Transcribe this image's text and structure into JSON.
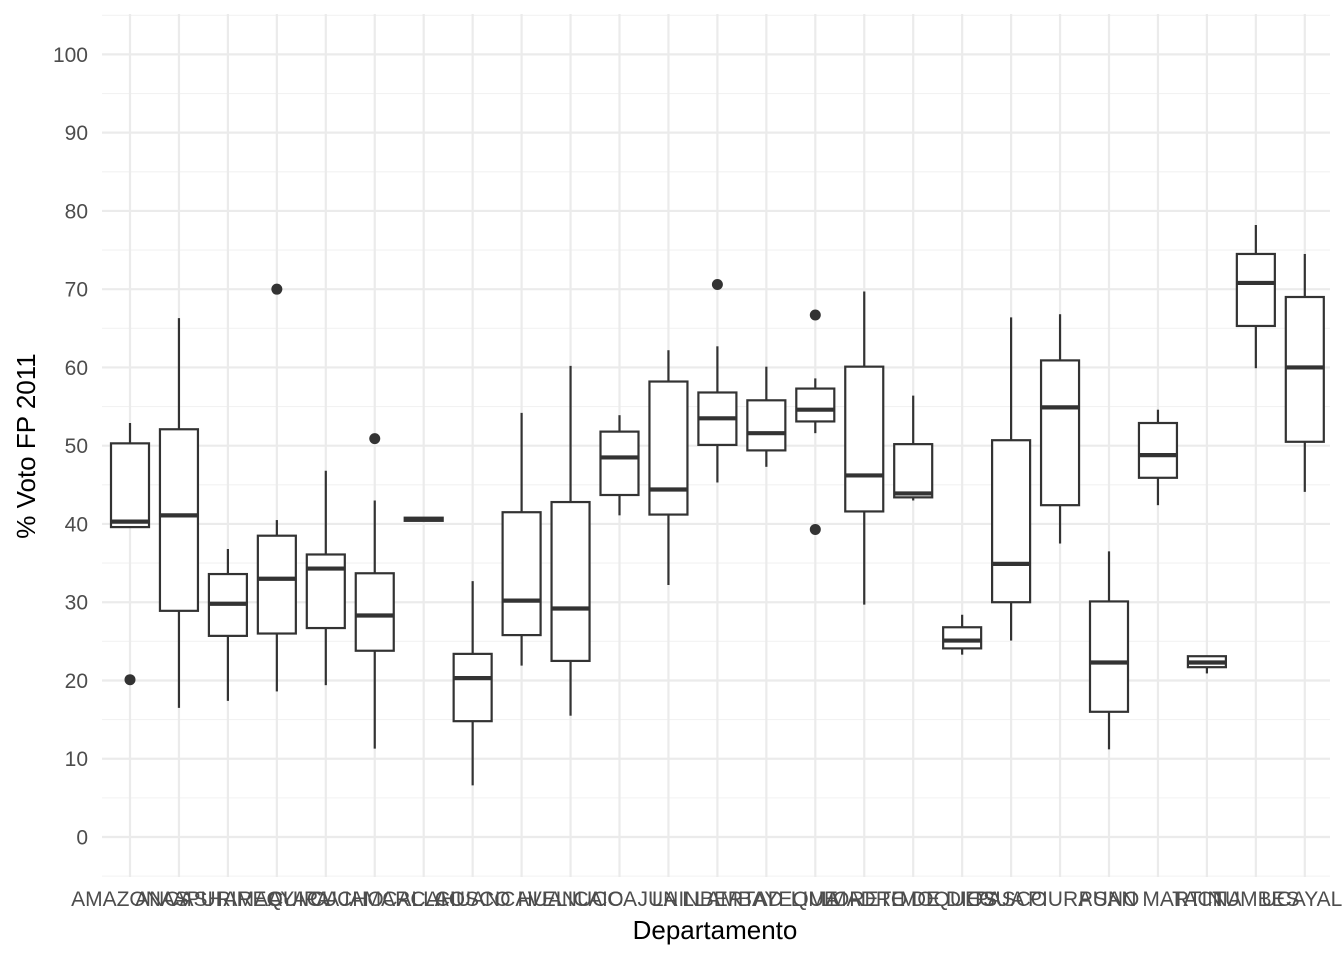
{
  "chart_data": {
    "type": "boxplot",
    "title": "",
    "xlabel": "Departamento",
    "ylabel": "% Voto FP 2011",
    "ylim": [
      -5,
      105
    ],
    "yticks": [
      0,
      10,
      20,
      30,
      40,
      50,
      60,
      70,
      80,
      90,
      100
    ],
    "grid": true,
    "legend": "none",
    "colors": {
      "grid_major": "#ebebeb",
      "grid_minor": "#f2f2f2",
      "box": "#333333",
      "tick_text": "#4d4d4d"
    },
    "categories": [
      "AMAZONAS",
      "ANCASH",
      "APURIMAC",
      "AREQUIPA",
      "AYACUCHO",
      "CAJAMARCA",
      "CALLAO",
      "CUSCO",
      "HUANCAVELICA",
      "HUANUCO",
      "ICA",
      "JUNIN",
      "LA LIBERTAD",
      "LAMBAYEQUE",
      "LIMA",
      "LORETO",
      "MADRE DE DIOS",
      "MOQUEGUA",
      "PASCO",
      "PIURA",
      "PUNO",
      "SAN MARTIN",
      "TACNA",
      "TUMBES",
      "UCAYALI"
    ],
    "boxes": [
      {
        "min": 39.6,
        "q1": 39.6,
        "median": 40.3,
        "q3": 50.3,
        "max": 52.9,
        "outliers": [
          20.1
        ]
      },
      {
        "min": 16.5,
        "q1": 28.9,
        "median": 41.1,
        "q3": 52.1,
        "max": 66.3,
        "outliers": []
      },
      {
        "min": 17.4,
        "q1": 25.7,
        "median": 29.8,
        "q3": 33.6,
        "max": 36.8,
        "outliers": []
      },
      {
        "min": 18.6,
        "q1": 26.0,
        "median": 33.0,
        "q3": 38.5,
        "max": 40.5,
        "outliers": [
          70.0
        ]
      },
      {
        "min": 19.4,
        "q1": 26.7,
        "median": 34.3,
        "q3": 36.1,
        "max": 46.8,
        "outliers": []
      },
      {
        "min": 11.3,
        "q1": 23.8,
        "median": 28.3,
        "q3": 33.7,
        "max": 43.0,
        "outliers": [
          50.9
        ]
      },
      {
        "min": 40.4,
        "q1": 40.4,
        "median": 40.6,
        "q3": 40.8,
        "max": 40.8,
        "outliers": []
      },
      {
        "min": 6.6,
        "q1": 14.8,
        "median": 20.3,
        "q3": 23.4,
        "max": 32.7,
        "outliers": []
      },
      {
        "min": 21.9,
        "q1": 25.8,
        "median": 30.2,
        "q3": 41.5,
        "max": 54.2,
        "outliers": []
      },
      {
        "min": 15.5,
        "q1": 22.5,
        "median": 29.2,
        "q3": 42.8,
        "max": 60.2,
        "outliers": []
      },
      {
        "min": 41.1,
        "q1": 43.7,
        "median": 48.5,
        "q3": 51.8,
        "max": 53.9,
        "outliers": []
      },
      {
        "min": 32.2,
        "q1": 41.2,
        "median": 44.4,
        "q3": 58.2,
        "max": 62.2,
        "outliers": []
      },
      {
        "min": 45.3,
        "q1": 50.1,
        "median": 53.5,
        "q3": 56.8,
        "max": 62.7,
        "outliers": [
          70.6
        ]
      },
      {
        "min": 47.3,
        "q1": 49.4,
        "median": 51.6,
        "q3": 55.8,
        "max": 60.1,
        "outliers": []
      },
      {
        "min": 51.6,
        "q1": 53.1,
        "median": 54.6,
        "q3": 57.3,
        "max": 58.6,
        "outliers": [
          66.7,
          39.3
        ]
      },
      {
        "min": 29.7,
        "q1": 41.6,
        "median": 46.2,
        "q3": 60.1,
        "max": 69.7,
        "outliers": []
      },
      {
        "min": 43.0,
        "q1": 43.4,
        "median": 43.9,
        "q3": 50.2,
        "max": 56.4,
        "outliers": []
      },
      {
        "min": 23.3,
        "q1": 24.1,
        "median": 25.1,
        "q3": 26.8,
        "max": 28.4,
        "outliers": []
      },
      {
        "min": 25.1,
        "q1": 30.0,
        "median": 34.9,
        "q3": 50.7,
        "max": 66.4,
        "outliers": []
      },
      {
        "min": 37.5,
        "q1": 42.4,
        "median": 54.9,
        "q3": 60.9,
        "max": 66.8,
        "outliers": []
      },
      {
        "min": 11.2,
        "q1": 16.0,
        "median": 22.3,
        "q3": 30.1,
        "max": 36.5,
        "outliers": []
      },
      {
        "min": 42.4,
        "q1": 45.9,
        "median": 48.8,
        "q3": 52.9,
        "max": 54.6,
        "outliers": []
      },
      {
        "min": 20.9,
        "q1": 21.7,
        "median": 22.3,
        "q3": 23.1,
        "max": 23.1,
        "outliers": []
      },
      {
        "min": 59.9,
        "q1": 65.3,
        "median": 70.8,
        "q3": 74.5,
        "max": 78.2,
        "outliers": []
      },
      {
        "min": 44.1,
        "q1": 50.5,
        "median": 60.0,
        "q3": 69.0,
        "max": 74.5,
        "outliers": []
      }
    ]
  }
}
